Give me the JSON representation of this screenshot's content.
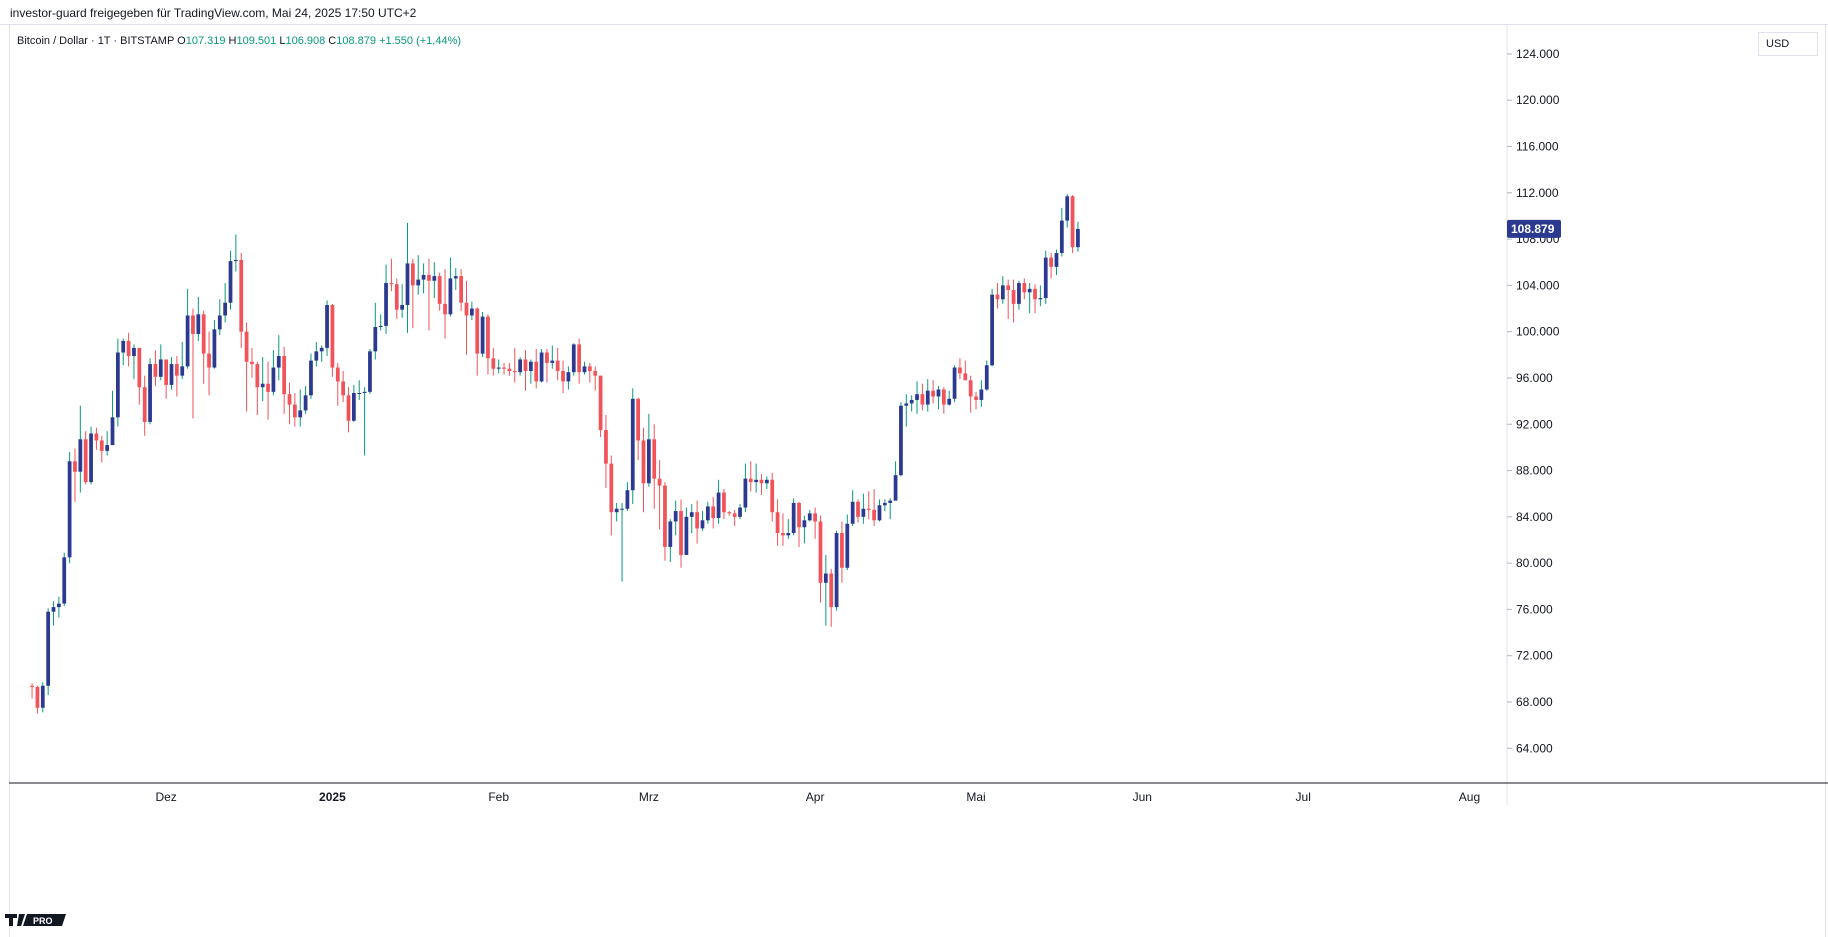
{
  "header": {
    "share_text": "investor-guard freigegeben für TradingView.com, Mai 24, 2025 17:50 UTC+2"
  },
  "legend": {
    "symbol": "Bitcoin / Dollar · 1T · BITSTAMP",
    "open_label": "O",
    "open_value": "107.319",
    "high_label": "H",
    "high_value": "109.501",
    "low_label": "L",
    "low_value": "106.908",
    "close_label": "C",
    "close_value": "108.879",
    "change": "+1.550 (+1,44%)"
  },
  "axis": {
    "currency": "USD",
    "last_price_label": "108.879"
  },
  "logo": {
    "text": "PRO"
  },
  "colors": {
    "up": "#2b3990",
    "down": "#f0535a",
    "wick_up": "#089981",
    "wick_down": "#f0535a",
    "price_tag": "#2b3990",
    "grid": "#e0e3eb"
  },
  "chart_data": {
    "type": "candlestick",
    "title": "Bitcoin / Dollar · 1T · BITSTAMP",
    "ylabel": "USD",
    "ylim": [
      61000,
      126500
    ],
    "y_ticks": [
      64000,
      68000,
      72000,
      76000,
      80000,
      84000,
      88000,
      92000,
      96000,
      100000,
      104000,
      108000,
      112000,
      116000,
      120000,
      124000
    ],
    "y_tick_labels": [
      "64.000",
      "68.000",
      "72.000",
      "76.000",
      "80.000",
      "84.000",
      "88.000",
      "92.000",
      "96.000",
      "100.000",
      "104.000",
      "108.000",
      "112.000",
      "116.000",
      "120.000",
      "124.000"
    ],
    "x_labels": [
      "Dez",
      "2025",
      "Feb",
      "Mrz",
      "Apr",
      "Mai",
      "Jun",
      "Jul",
      "Aug"
    ],
    "x_label_days": [
      25,
      56,
      87,
      115,
      146,
      176,
      207,
      237,
      268
    ],
    "x_domain_days": [
      -4.3,
      275
    ],
    "grid": false,
    "start_date": "2024-11-05",
    "candles_ohlc": [
      [
        69400,
        69300,
        68300,
        69600
      ],
      [
        69300,
        67500,
        67000,
        69400
      ],
      [
        67500,
        69400,
        67100,
        69700
      ],
      [
        69400,
        75800,
        68600,
        76100
      ],
      [
        75800,
        76200,
        74600,
        76700
      ],
      [
        76200,
        76500,
        75300,
        77100
      ],
      [
        76500,
        80500,
        76300,
        80900
      ],
      [
        80500,
        88800,
        80000,
        89600
      ],
      [
        88800,
        87900,
        85300,
        89900
      ],
      [
        87900,
        90700,
        86100,
        93600
      ],
      [
        90700,
        87000,
        86800,
        91400
      ],
      [
        87000,
        91200,
        86800,
        91800
      ],
      [
        91200,
        90600,
        89800,
        91700
      ],
      [
        90600,
        89700,
        88700,
        91000
      ],
      [
        89700,
        90200,
        89300,
        91400
      ],
      [
        90200,
        92600,
        90200,
        94900
      ],
      [
        92600,
        98200,
        91800,
        99400
      ],
      [
        98200,
        99200,
        97100,
        99400
      ],
      [
        99200,
        97900,
        97000,
        99900
      ],
      [
        97900,
        98600,
        95900,
        98900
      ],
      [
        98600,
        95200,
        93700,
        98500
      ],
      [
        95200,
        92200,
        91000,
        96200
      ],
      [
        92200,
        97200,
        92000,
        97700
      ],
      [
        97200,
        96100,
        95300,
        98400
      ],
      [
        96100,
        97600,
        95800,
        98900
      ],
      [
        97600,
        95400,
        94200,
        97500
      ],
      [
        95400,
        97200,
        95000,
        97800
      ],
      [
        97200,
        96200,
        94400,
        97900
      ],
      [
        96200,
        97000,
        95900,
        99100
      ],
      [
        97000,
        101400,
        96800,
        103700
      ],
      [
        101400,
        99800,
        92500,
        102000
      ],
      [
        99800,
        101500,
        99200,
        103000
      ],
      [
        101500,
        98100,
        95500,
        101800
      ],
      [
        98100,
        96900,
        94500,
        100000
      ],
      [
        96900,
        100200,
        96800,
        101000
      ],
      [
        100200,
        101400,
        99700,
        102800
      ],
      [
        101400,
        102500,
        100800,
        104200
      ],
      [
        102500,
        106100,
        101900,
        107000
      ],
      [
        106100,
        106200,
        105200,
        108400
      ],
      [
        106200,
        100000,
        98600,
        106800
      ],
      [
        100000,
        97400,
        93100,
        100800
      ],
      [
        97400,
        97200,
        96000,
        98600
      ],
      [
        97200,
        95200,
        92800,
        97400
      ],
      [
        95200,
        95500,
        94000,
        97800
      ],
      [
        95500,
        94800,
        92400,
        97400
      ],
      [
        94800,
        96900,
        94500,
        98400
      ],
      [
        96900,
        97900,
        95800,
        99700
      ],
      [
        97900,
        94600,
        92900,
        98700
      ],
      [
        94600,
        93700,
        92000,
        95600
      ],
      [
        93700,
        92600,
        91800,
        94700
      ],
      [
        92600,
        93200,
        91800,
        95000
      ],
      [
        93200,
        94500,
        92900,
        95300
      ],
      [
        94500,
        97500,
        94200,
        98100
      ],
      [
        97500,
        98300,
        97000,
        99100
      ],
      [
        98300,
        98600,
        97400,
        98800
      ],
      [
        98600,
        102300,
        97900,
        102700
      ],
      [
        102300,
        96900,
        96100,
        102400
      ],
      [
        96900,
        95700,
        93600,
        97300
      ],
      [
        95700,
        94500,
        93900,
        96600
      ],
      [
        94500,
        92300,
        91300,
        95200
      ],
      [
        92300,
        94700,
        92200,
        95400
      ],
      [
        94700,
        94700,
        94100,
        95800
      ],
      [
        94700,
        94800,
        89300,
        95200
      ],
      [
        94800,
        98300,
        94600,
        98500
      ],
      [
        98300,
        100400,
        97600,
        102500
      ],
      [
        100400,
        100500,
        100100,
        101500
      ],
      [
        100500,
        104200,
        99800,
        105800
      ],
      [
        104200,
        104100,
        103500,
        106300
      ],
      [
        104100,
        101900,
        101100,
        104600
      ],
      [
        101900,
        102300,
        101200,
        104100
      ],
      [
        102300,
        105900,
        99900,
        109400
      ],
      [
        105900,
        104000,
        100300,
        106300
      ],
      [
        104000,
        104500,
        103200,
        106600
      ],
      [
        104500,
        104900,
        103300,
        105900
      ],
      [
        104900,
        104400,
        100100,
        106300
      ],
      [
        104400,
        104800,
        102900,
        106000
      ],
      [
        104800,
        102400,
        101800,
        105100
      ],
      [
        102400,
        101500,
        99400,
        105400
      ],
      [
        101500,
        104600,
        101300,
        106400
      ],
      [
        104600,
        104800,
        103600,
        105500
      ],
      [
        104800,
        102500,
        101800,
        105400
      ],
      [
        102500,
        101400,
        98000,
        104400
      ],
      [
        101400,
        102000,
        101000,
        102600
      ],
      [
        102000,
        98100,
        96200,
        102100
      ],
      [
        98100,
        101300,
        97800,
        101700
      ],
      [
        101300,
        97700,
        96300,
        101500
      ],
      [
        97700,
        96800,
        96200,
        98600
      ],
      [
        96800,
        96900,
        96400,
        97600
      ],
      [
        96900,
        96800,
        96300,
        97300
      ],
      [
        96800,
        96600,
        96200,
        97300
      ],
      [
        96600,
        96500,
        95600,
        98600
      ],
      [
        96500,
        97600,
        96200,
        97800
      ],
      [
        97600,
        96600,
        94900,
        98400
      ],
      [
        96600,
        97400,
        95500,
        97600
      ],
      [
        97400,
        95700,
        95100,
        98500
      ],
      [
        95700,
        98200,
        95600,
        98500
      ],
      [
        98200,
        97300,
        95600,
        98500
      ],
      [
        97300,
        97500,
        96800,
        98800
      ],
      [
        97500,
        96600,
        95800,
        98600
      ],
      [
        96600,
        95700,
        94700,
        97500
      ],
      [
        95700,
        96500,
        95000,
        97000
      ],
      [
        96500,
        98900,
        96200,
        99000
      ],
      [
        98900,
        96500,
        95500,
        99400
      ],
      [
        96500,
        97000,
        96300,
        97400
      ],
      [
        97000,
        96600,
        95600,
        97300
      ],
      [
        96600,
        96200,
        94900,
        97000
      ],
      [
        96200,
        91500,
        90900,
        96200
      ],
      [
        91500,
        88600,
        86500,
        92800
      ],
      [
        88600,
        84400,
        82400,
        89300
      ],
      [
        84400,
        84700,
        83600,
        85200
      ],
      [
        84700,
        84700,
        78400,
        85200
      ],
      [
        84700,
        86300,
        84500,
        87000
      ],
      [
        86300,
        94200,
        85100,
        95100
      ],
      [
        94200,
        90600,
        88900,
        94300
      ],
      [
        90600,
        86900,
        84400,
        91700
      ],
      [
        86900,
        90700,
        86600,
        92900
      ],
      [
        90700,
        87300,
        84700,
        92000
      ],
      [
        87300,
        86700,
        82900,
        88900
      ],
      [
        86700,
        81400,
        80200,
        87000
      ],
      [
        81400,
        83600,
        80100,
        83800
      ],
      [
        83600,
        84500,
        82400,
        85400
      ],
      [
        84500,
        80700,
        79600,
        85500
      ],
      [
        80700,
        84000,
        81400,
        84800
      ],
      [
        84000,
        84400,
        82600,
        85100
      ],
      [
        84400,
        83000,
        81700,
        85400
      ],
      [
        83000,
        83700,
        82800,
        84500
      ],
      [
        83700,
        84900,
        83400,
        85300
      ],
      [
        84900,
        83900,
        83000,
        85700
      ],
      [
        83900,
        86100,
        83400,
        87200
      ],
      [
        86100,
        84400,
        83800,
        86400
      ],
      [
        84400,
        84300,
        84100,
        84500
      ],
      [
        84300,
        84000,
        83200,
        84600
      ],
      [
        84000,
        84800,
        83800,
        85100
      ],
      [
        84800,
        87300,
        84400,
        88600
      ],
      [
        87300,
        87000,
        86200,
        88800
      ],
      [
        87000,
        87200,
        86100,
        88600
      ],
      [
        87200,
        86900,
        85900,
        87700
      ],
      [
        86900,
        87200,
        86400,
        87500
      ],
      [
        87200,
        84400,
        83600,
        87800
      ],
      [
        84400,
        82600,
        81500,
        85500
      ],
      [
        82600,
        82400,
        81500,
        84300
      ],
      [
        82400,
        82600,
        82100,
        83800
      ],
      [
        82600,
        85200,
        82400,
        85600
      ],
      [
        85200,
        83100,
        81400,
        85300
      ],
      [
        83100,
        83700,
        81700,
        84100
      ],
      [
        83700,
        84300,
        83600,
        84600
      ],
      [
        84300,
        83600,
        82100,
        84800
      ],
      [
        83600,
        78300,
        76600,
        84100
      ],
      [
        78300,
        79100,
        74600,
        80700
      ],
      [
        79100,
        76200,
        74500,
        79500
      ],
      [
        76200,
        82600,
        75900,
        82800
      ],
      [
        82600,
        79600,
        78300,
        83600
      ],
      [
        79600,
        83400,
        79400,
        84200
      ],
      [
        83400,
        85300,
        83200,
        86300
      ],
      [
        85300,
        84000,
        83500,
        85500
      ],
      [
        84000,
        84700,
        83400,
        86000
      ],
      [
        84700,
        84600,
        83800,
        86200
      ],
      [
        84600,
        83700,
        83200,
        86400
      ],
      [
        83700,
        85000,
        83600,
        85500
      ],
      [
        85000,
        85200,
        84500,
        85500
      ],
      [
        85200,
        85400,
        83800,
        85600
      ],
      [
        85400,
        87600,
        85400,
        88800
      ],
      [
        87600,
        93600,
        87500,
        93900
      ],
      [
        93600,
        93800,
        91800,
        94600
      ],
      [
        93800,
        94100,
        93100,
        94500
      ],
      [
        94100,
        94600,
        92900,
        95700
      ],
      [
        94600,
        93700,
        93200,
        95500
      ],
      [
        93700,
        94900,
        93100,
        95900
      ],
      [
        94900,
        94400,
        93800,
        95800
      ],
      [
        94400,
        95000,
        93300,
        95300
      ],
      [
        95000,
        93700,
        92900,
        95200
      ],
      [
        93700,
        94200,
        93600,
        94900
      ],
      [
        94200,
        96900,
        93900,
        97100
      ],
      [
        96900,
        96400,
        95900,
        97700
      ],
      [
        96400,
        95800,
        95800,
        97500
      ],
      [
        95800,
        94400,
        93000,
        96200
      ],
      [
        94400,
        94100,
        93300,
        94800
      ],
      [
        94100,
        95000,
        93500,
        95800
      ],
      [
        95000,
        97100,
        94900,
        97500
      ],
      [
        97100,
        103200,
        97000,
        103700
      ],
      [
        103200,
        102800,
        102000,
        104200
      ],
      [
        102800,
        104000,
        102400,
        104800
      ],
      [
        104000,
        103600,
        101100,
        104500
      ],
      [
        103600,
        102400,
        100800,
        104500
      ],
      [
        102400,
        104200,
        101900,
        104400
      ],
      [
        104200,
        103400,
        102800,
        104600
      ],
      [
        103400,
        103700,
        101600,
        104200
      ],
      [
        103700,
        102800,
        101600,
        104100
      ],
      [
        102800,
        102900,
        102200,
        104000
      ],
      [
        102900,
        106400,
        102400,
        107000
      ],
      [
        106400,
        105600,
        104600,
        106800
      ],
      [
        105600,
        106800,
        104900,
        107100
      ],
      [
        106800,
        109600,
        106500,
        110700
      ],
      [
        109600,
        111700,
        109000,
        111900
      ],
      [
        111700,
        107300,
        106800,
        111800
      ],
      [
        107300,
        108879,
        106908,
        109501
      ]
    ]
  }
}
